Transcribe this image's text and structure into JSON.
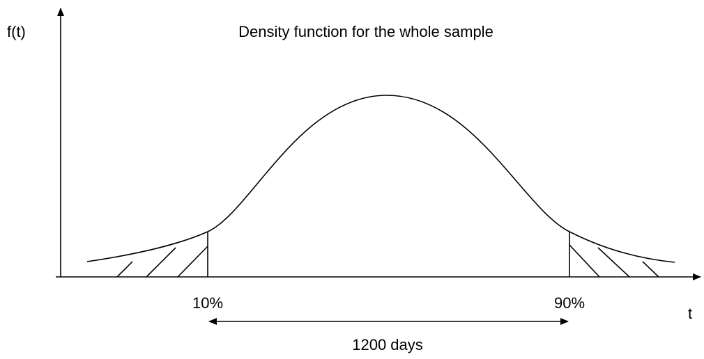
{
  "title": "Density function for the whole sample",
  "axes": {
    "y_label": "f(t)",
    "x_label": "t"
  },
  "markers": [
    {
      "label": "10%"
    },
    {
      "label": "90%"
    }
  ],
  "span": {
    "label": "1200 days"
  }
}
